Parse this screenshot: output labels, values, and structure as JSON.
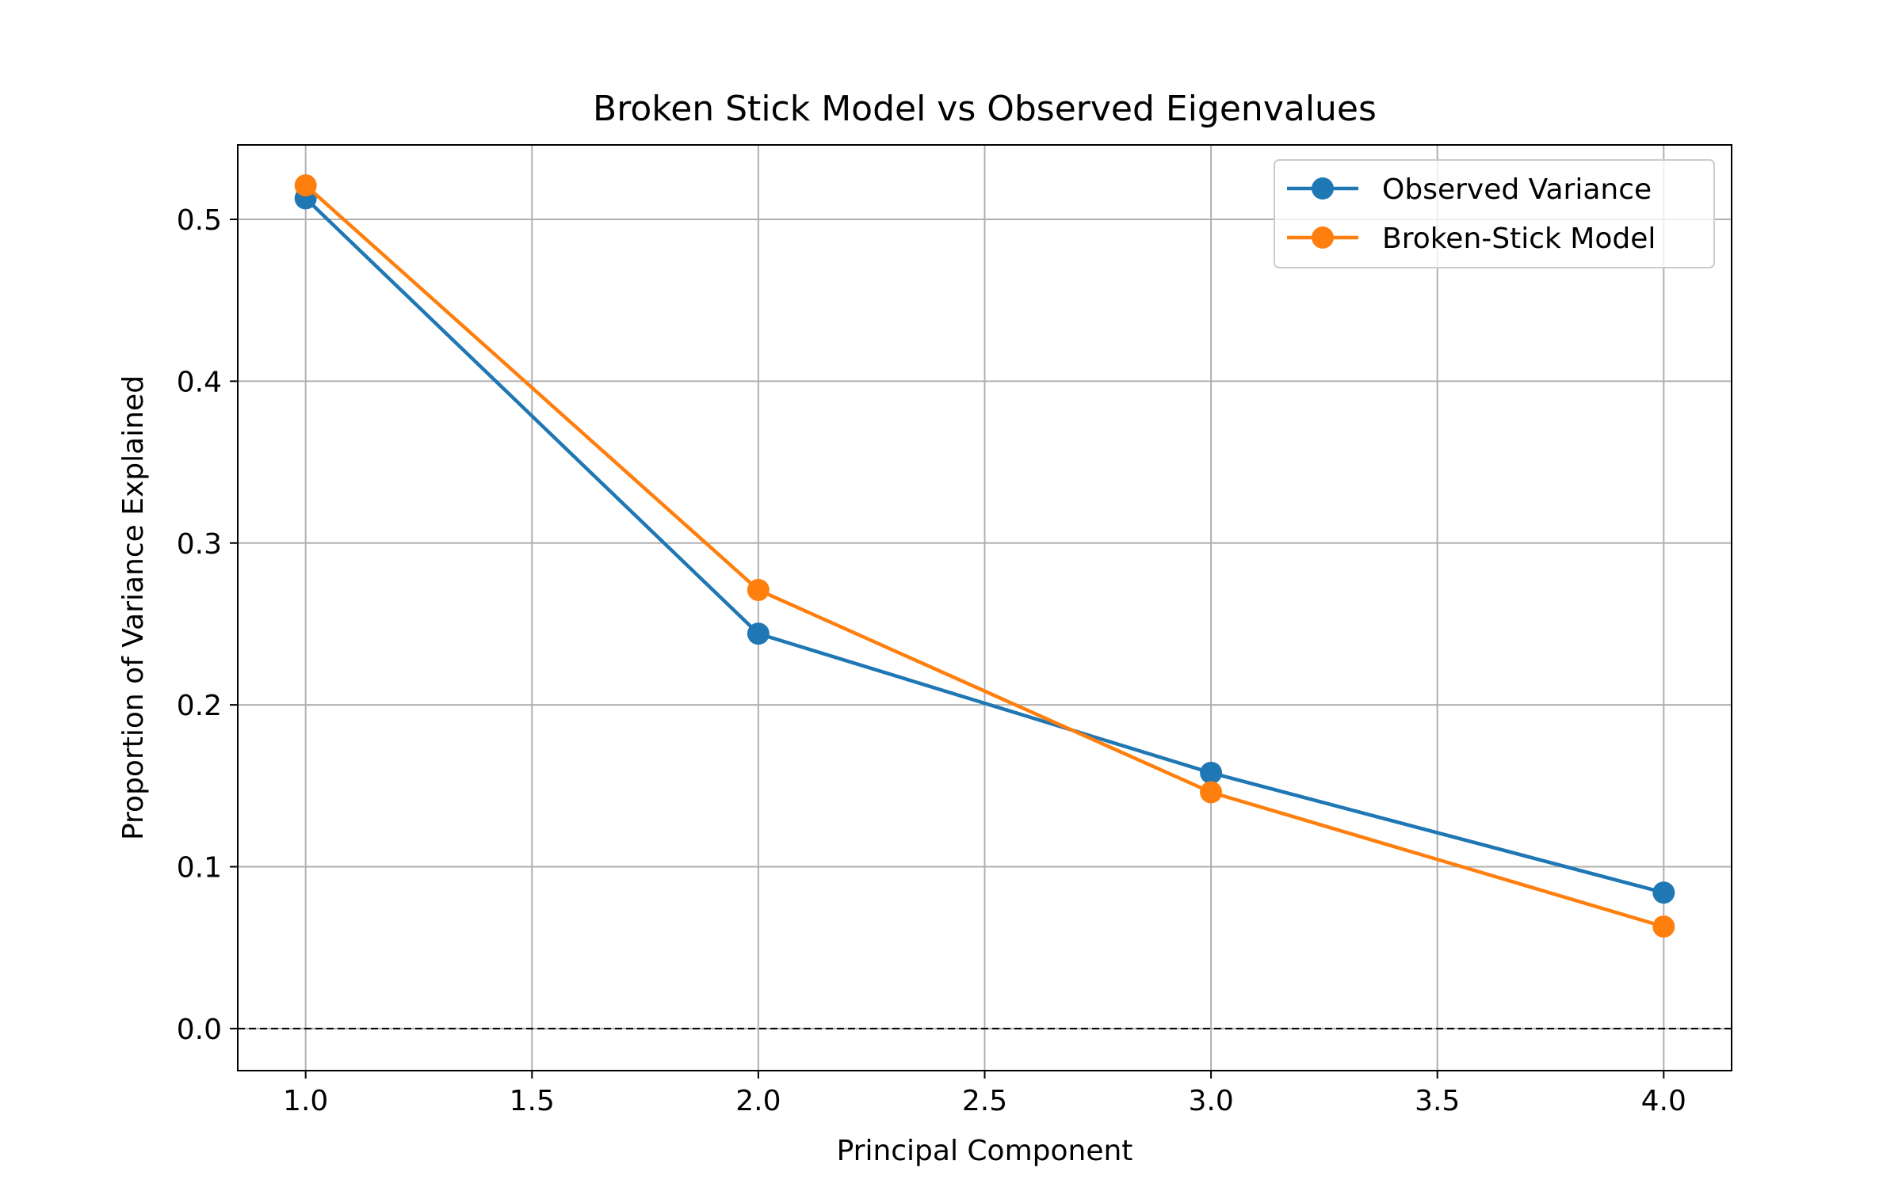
{
  "chart_data": {
    "type": "line",
    "title": "Broken Stick Model vs Observed Eigenvalues",
    "xlabel": "Principal Component",
    "ylabel": "Proportion of Variance Explained",
    "x": [
      1,
      2,
      3,
      4
    ],
    "xlim": [
      0.85,
      4.15
    ],
    "ylim": [
      -0.026,
      0.546
    ],
    "xticks": [
      1.0,
      1.5,
      2.0,
      2.5,
      3.0,
      3.5,
      4.0
    ],
    "xtick_labels": [
      "1.0",
      "1.5",
      "2.0",
      "2.5",
      "3.0",
      "3.5",
      "4.0"
    ],
    "yticks": [
      0.0,
      0.1,
      0.2,
      0.3,
      0.4,
      0.5
    ],
    "ytick_labels": [
      "0.0",
      "0.1",
      "0.2",
      "0.3",
      "0.4",
      "0.5"
    ],
    "grid": true,
    "reference_line": {
      "y": 0.0,
      "style": "dashed",
      "color": "#000000"
    },
    "legend_position": "top-right",
    "series": [
      {
        "name": "Observed Variance",
        "color": "#1f77b4",
        "marker": "circle",
        "values": [
          0.513,
          0.244,
          0.158,
          0.084
        ]
      },
      {
        "name": "Broken-Stick Model",
        "color": "#ff7f0e",
        "marker": "circle",
        "values": [
          0.521,
          0.271,
          0.146,
          0.063
        ]
      }
    ]
  }
}
